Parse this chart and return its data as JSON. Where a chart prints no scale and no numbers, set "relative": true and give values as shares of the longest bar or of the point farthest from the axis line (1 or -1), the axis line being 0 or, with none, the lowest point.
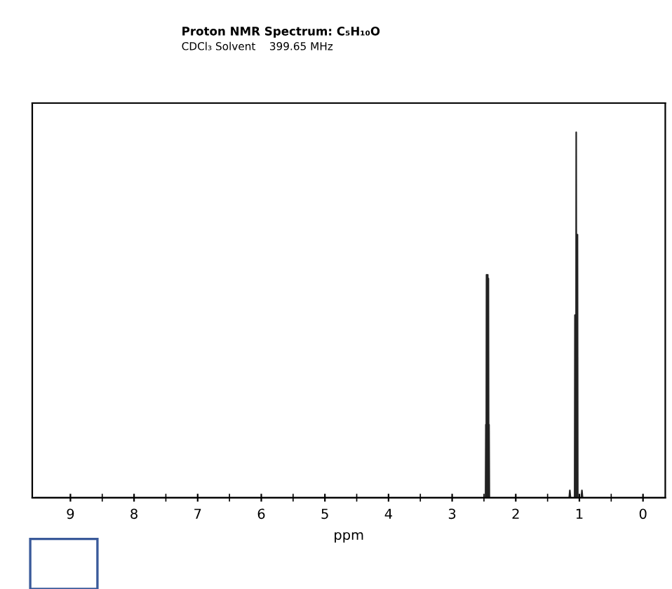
{
  "chart_data": {
    "type": "line",
    "title": "Proton NMR Spectrum: C₅H₁₀O",
    "subtitle": "CDCl₃ Solvent    399.65 MHz",
    "xlabel": "ppm",
    "relative": true,
    "tick_labels": "x",
    "grid": false,
    "marker": "none",
    "line_style": "solid",
    "x": [
      9.55,
      2.52,
      2.475,
      2.47,
      2.465,
      2.46,
      2.455,
      2.45,
      2.445,
      2.44,
      2.435,
      2.43,
      2.425,
      2.42,
      2.415,
      2.4,
      1.2,
      1.16,
      1.15,
      1.14,
      1.09,
      1.075,
      1.07,
      1.065,
      1.055,
      1.05,
      1.045,
      1.035,
      1.03,
      1.025,
      1.01,
      0.97,
      0.96,
      0.95,
      -0.35
    ],
    "series": [
      {
        "color": "#222222",
        "values": [
          0,
          0,
          0,
          0.2,
          0,
          0.61,
          0,
          0.6,
          0,
          0.61,
          0,
          0.6,
          0,
          0.2,
          0,
          0,
          0,
          0,
          0.02,
          0,
          0,
          0,
          0.5,
          0,
          0,
          1,
          0,
          0,
          0.72,
          0,
          0,
          0,
          0.02,
          0,
          0
        ]
      }
    ],
    "xlim": [
      9.6,
      -0.35
    ],
    "xticks": [
      9,
      {
        "value": 8.5,
        "label": null
      },
      8,
      {
        "value": 7.5,
        "label": null
      },
      7,
      {
        "value": 6.5,
        "label": null
      },
      6,
      {
        "value": 5.5,
        "label": null
      },
      5,
      {
        "value": 4.5,
        "label": null
      },
      4,
      {
        "value": 3.5,
        "label": null
      },
      3,
      {
        "value": 2.5,
        "label": null
      },
      2,
      {
        "value": 1.5,
        "label": null
      },
      1,
      {
        "value": 0.5,
        "label": null
      },
      0
    ]
  }
}
